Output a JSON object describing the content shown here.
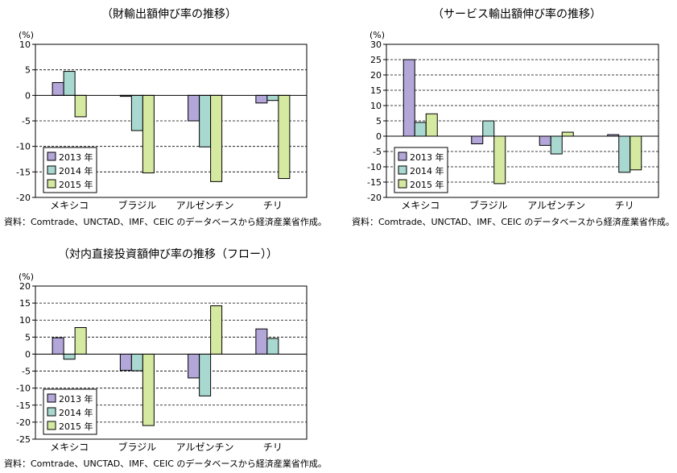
{
  "chart_data": [
    {
      "type": "bar",
      "title": "（財輸出額伸び率の推移）",
      "ylabel": "(%)",
      "ylim": [
        -20,
        10
      ],
      "yticks": [
        10,
        5,
        0,
        -5,
        -10,
        -15,
        -20
      ],
      "categories": [
        "メキシコ",
        "ブラジル",
        "アルゼンチン",
        "チリ"
      ],
      "series": [
        {
          "name": "2013 年",
          "color": "#b3a6d9",
          "values": [
            2.5,
            -0.2,
            -5.0,
            -1.5
          ]
        },
        {
          "name": "2014 年",
          "color": "#a8d8d0",
          "values": [
            4.7,
            -6.9,
            -10.1,
            -1.0
          ]
        },
        {
          "name": "2015 年",
          "color": "#d5eaa0",
          "values": [
            -4.2,
            -15.2,
            -16.9,
            -16.3
          ]
        }
      ],
      "grid": "dashed",
      "legend": "bottom-left",
      "source": "資料：Comtrade、UNCTAD、IMF、CEIC のデータベースから経済産業省作成。"
    },
    {
      "type": "bar",
      "title": "（サービス輸出額伸び率の推移）",
      "ylabel": "(%)",
      "ylim": [
        -20,
        30
      ],
      "yticks": [
        30,
        25,
        20,
        15,
        10,
        5,
        0,
        -5,
        -10,
        -15,
        -20
      ],
      "categories": [
        "メキシコ",
        "ブラジル",
        "アルゼンチン",
        "チリ"
      ],
      "series": [
        {
          "name": "2013 年",
          "color": "#b3a6d9",
          "values": [
            25.0,
            -2.5,
            -3.0,
            0.5
          ]
        },
        {
          "name": "2014 年",
          "color": "#a8d8d0",
          "values": [
            4.5,
            5.0,
            -5.8,
            -11.8
          ]
        },
        {
          "name": "2015 年",
          "color": "#d5eaa0",
          "values": [
            7.3,
            -15.5,
            1.3,
            -11.0
          ]
        }
      ],
      "grid": "dashed",
      "legend": "bottom-left",
      "source": "資料：Comtrade、UNCTAD、IMF、CEIC のデータベースから経済産業省作成。"
    },
    {
      "type": "bar",
      "title": "（対内直接投資額伸び率の推移（フロー））",
      "ylabel": "(%)",
      "ylim": [
        -25,
        20
      ],
      "yticks": [
        20,
        15,
        10,
        5,
        0,
        -5,
        -10,
        -15,
        -20,
        -25
      ],
      "categories": [
        "メキシコ",
        "ブラジル",
        "アルゼンチン",
        "チリ"
      ],
      "series": [
        {
          "name": "2013 年",
          "color": "#b3a6d9",
          "values": [
            4.8,
            -4.8,
            -7.0,
            7.4
          ]
        },
        {
          "name": "2014 年",
          "color": "#a8d8d0",
          "values": [
            -1.5,
            -4.9,
            -12.3,
            4.6
          ]
        },
        {
          "name": "2015 年",
          "color": "#d5eaa0",
          "values": [
            7.8,
            -21.0,
            14.2,
            0
          ]
        }
      ],
      "grid": "dashed",
      "legend": "bottom-left",
      "source": "資料：Comtrade、UNCTAD、IMF、CEIC のデータベースから経済産業省作成。"
    }
  ]
}
